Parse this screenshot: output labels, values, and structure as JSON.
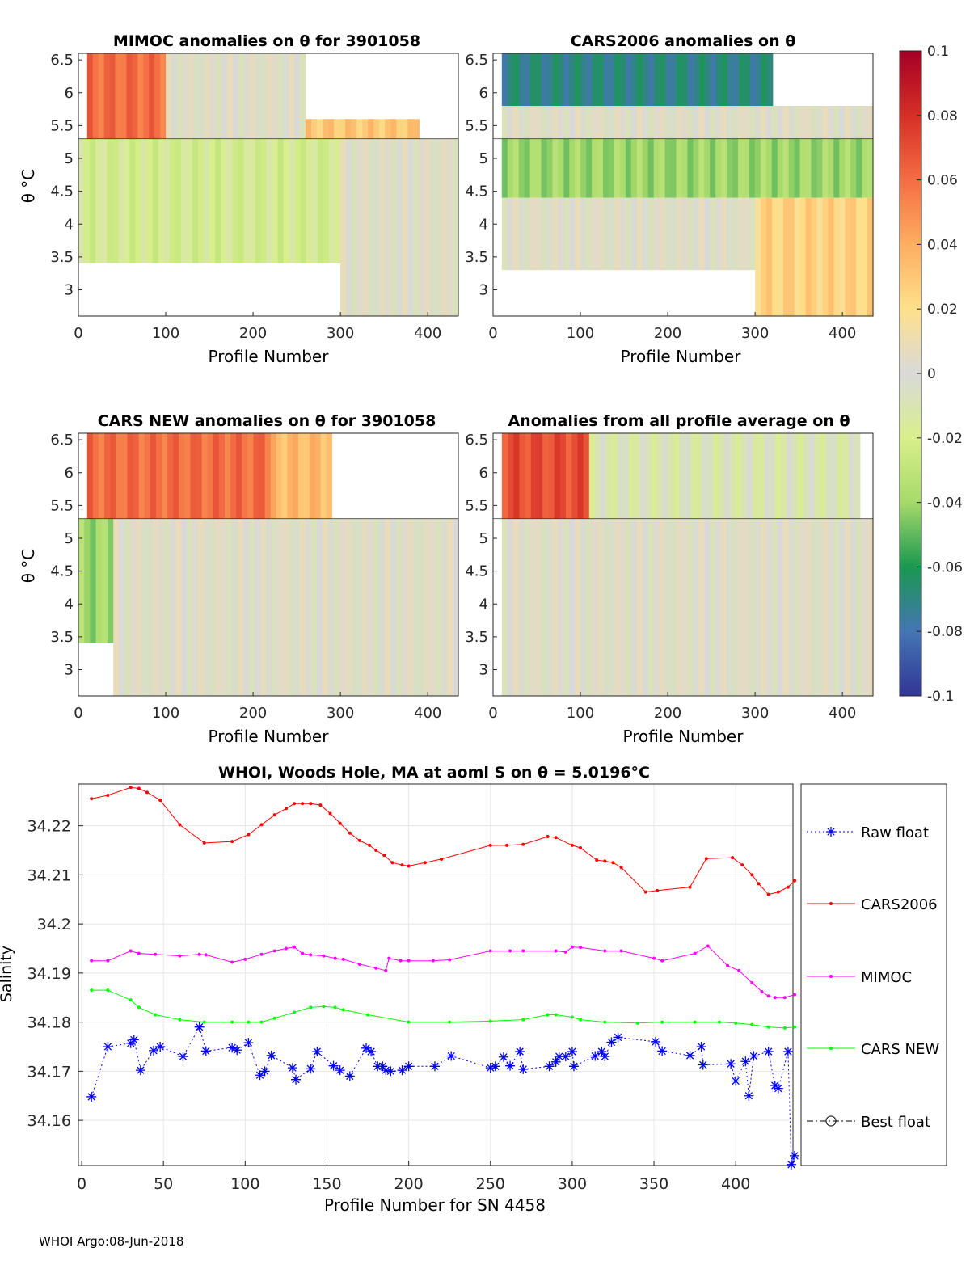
{
  "footer": "WHOI Argo:08-Jun-2018",
  "colorbar": {
    "ticks": [
      "0.1",
      "0.08",
      "0.06",
      "0.04",
      "0.02",
      "0",
      "-0.02",
      "-0.04",
      "-0.06",
      "-0.08",
      "-0.1"
    ],
    "stops": [
      "#a50026",
      "#d62f27",
      "#f46d43",
      "#fdae61",
      "#fee08b",
      "#d9d9d9",
      "#d9ef8b",
      "#a6d96a",
      "#1a9850",
      "#4575b4",
      "#313695"
    ]
  },
  "chart_data": [
    {
      "type": "heatmap",
      "title": "MIMOC anomalies on θ  for 3901058",
      "xlabel": "Profile Number",
      "ylabel": "θ °C",
      "xlim": [
        0,
        435
      ],
      "ylim": [
        2.6,
        6.6
      ],
      "xticks": [
        "0",
        "100",
        "200",
        "300",
        "400"
      ],
      "yticks": [
        "3",
        "3.5",
        "4",
        "4.5",
        "5",
        "5.5",
        "6",
        "6.5"
      ],
      "bands": [
        {
          "y": [
            5.3,
            6.6
          ],
          "x": [
            10,
            100
          ],
          "value": 0.06
        },
        {
          "y": [
            5.3,
            6.6
          ],
          "x": [
            100,
            260
          ],
          "value": 0.0
        },
        {
          "y": [
            5.2,
            5.6
          ],
          "x": [
            260,
            390
          ],
          "value": 0.03
        },
        {
          "y": [
            3.4,
            5.3
          ],
          "x": [
            0,
            300
          ],
          "value": -0.02
        },
        {
          "y": [
            2.6,
            5.3
          ],
          "x": [
            300,
            435
          ],
          "value": 0.0
        }
      ]
    },
    {
      "type": "heatmap",
      "title": "CARS2006 anomalies on θ",
      "xlabel": "Profile Number",
      "ylabel": "",
      "xlim": [
        0,
        435
      ],
      "ylim": [
        2.6,
        6.6
      ],
      "xticks": [
        "0",
        "100",
        "200",
        "300",
        "400"
      ],
      "yticks": [
        "3",
        "3.5",
        "4",
        "4.5",
        "5",
        "5.5",
        "6",
        "6.5"
      ],
      "bands": [
        {
          "y": [
            5.8,
            6.6
          ],
          "x": [
            10,
            320
          ],
          "value": -0.07
        },
        {
          "y": [
            5.3,
            5.8
          ],
          "x": [
            10,
            435
          ],
          "value": 0.0
        },
        {
          "y": [
            4.4,
            5.3
          ],
          "x": [
            10,
            435
          ],
          "value": -0.04
        },
        {
          "y": [
            3.3,
            4.4
          ],
          "x": [
            10,
            300
          ],
          "value": 0.0
        },
        {
          "y": [
            2.6,
            4.4
          ],
          "x": [
            300,
            435
          ],
          "value": 0.025
        }
      ]
    },
    {
      "type": "heatmap",
      "title": "CARS NEW anomalies on θ for 3901058",
      "xlabel": "Profile Number",
      "ylabel": "θ °C",
      "xlim": [
        0,
        435
      ],
      "ylim": [
        2.6,
        6.6
      ],
      "xticks": [
        "0",
        "100",
        "200",
        "300",
        "400"
      ],
      "yticks": [
        "3",
        "3.5",
        "4",
        "4.5",
        "5",
        "5.5",
        "6",
        "6.5"
      ],
      "bands": [
        {
          "y": [
            5.3,
            6.6
          ],
          "x": [
            10,
            220
          ],
          "value": 0.06
        },
        {
          "y": [
            5.3,
            6.6
          ],
          "x": [
            220,
            290
          ],
          "value": 0.035
        },
        {
          "y": [
            3.4,
            5.3
          ],
          "x": [
            0,
            40
          ],
          "value": -0.04
        },
        {
          "y": [
            2.6,
            5.3
          ],
          "x": [
            40,
            435
          ],
          "value": 0.0
        }
      ]
    },
    {
      "type": "heatmap",
      "title": "Anomalies from all profile average on θ",
      "xlabel": "Profile Number",
      "ylabel": "",
      "xlim": [
        0,
        435
      ],
      "ylim": [
        2.6,
        6.6
      ],
      "xticks": [
        "0",
        "100",
        "200",
        "300",
        "400"
      ],
      "yticks": [
        "3",
        "3.5",
        "4",
        "4.5",
        "5",
        "5.5",
        "6",
        "6.5"
      ],
      "bands": [
        {
          "y": [
            5.3,
            6.6
          ],
          "x": [
            10,
            110
          ],
          "value": 0.07
        },
        {
          "y": [
            5.3,
            6.6
          ],
          "x": [
            110,
            420
          ],
          "value": -0.01
        },
        {
          "y": [
            2.6,
            5.3
          ],
          "x": [
            10,
            435
          ],
          "value": 0.0
        }
      ]
    },
    {
      "type": "line",
      "title": "WHOI, Woods Hole, MA at aoml S on θ = 5.0196°C",
      "xlabel": "Profile Number for SN 4458",
      "ylabel": "Salinity",
      "xlim": [
        -2,
        435
      ],
      "ylim": [
        34.1508,
        34.2285
      ],
      "grid": true,
      "legend_position": "right",
      "xticks": [
        0,
        50,
        100,
        150,
        200,
        250,
        300,
        350,
        400
      ],
      "yticks": [
        34.16,
        34.17,
        34.18,
        34.19,
        34.2,
        34.21,
        34.22
      ],
      "series": [
        {
          "name": "Raw float",
          "color": "#0000ff",
          "marker": "*",
          "style": "dotted",
          "x": [
            6,
            16,
            30,
            32,
            36,
            44,
            48,
            62,
            72,
            76,
            92,
            95,
            102,
            109,
            112,
            116,
            129,
            131,
            140,
            144,
            154,
            158,
            164,
            174,
            177,
            181,
            184,
            186,
            189,
            196,
            200,
            216,
            226,
            250,
            253,
            258,
            262,
            268,
            270,
            286,
            290,
            292,
            296,
            300,
            301,
            314,
            318,
            320,
            324,
            328,
            351,
            355,
            372,
            379,
            380,
            397,
            400,
            406,
            408,
            411,
            420,
            424,
            426,
            432,
            434,
            436
          ],
          "y": [
            34.1648,
            34.175,
            34.1757,
            34.1764,
            34.1702,
            34.1742,
            34.175,
            34.173,
            34.179,
            34.1741,
            34.1748,
            34.1743,
            34.1758,
            34.1692,
            34.17,
            34.1732,
            34.1707,
            34.1683,
            34.1705,
            34.174,
            34.1711,
            34.1702,
            34.169,
            34.1747,
            34.174,
            34.171,
            34.171,
            34.1702,
            34.17,
            34.1702,
            34.171,
            34.171,
            34.1731,
            34.1707,
            34.171,
            34.1729,
            34.1711,
            34.174,
            34.1704,
            34.171,
            34.1719,
            34.173,
            34.173,
            34.174,
            34.171,
            34.1731,
            34.174,
            34.173,
            34.1759,
            34.1769,
            34.176,
            34.1741,
            34.1732,
            34.175,
            34.1713,
            34.1715,
            34.168,
            34.172,
            34.165,
            34.1731,
            34.174,
            34.1671,
            34.1665,
            34.174,
            34.151,
            34.1528
          ]
        },
        {
          "name": "CARS2006",
          "color": "#ff0000",
          "marker": ".",
          "style": "solid",
          "x": [
            6,
            16,
            30,
            35,
            40,
            48,
            60,
            75,
            92,
            102,
            110,
            118,
            125,
            130,
            135,
            140,
            146,
            152,
            158,
            164,
            170,
            176,
            180,
            185,
            190,
            196,
            200,
            210,
            220,
            250,
            260,
            270,
            285,
            290,
            300,
            305,
            315,
            320,
            325,
            330,
            345,
            352,
            372,
            382,
            398,
            404,
            410,
            414,
            420,
            426,
            432,
            436
          ],
          "y": [
            34.2255,
            34.2262,
            34.2278,
            34.2276,
            34.2268,
            34.2252,
            34.2202,
            34.2165,
            34.2168,
            34.2182,
            34.2202,
            34.2222,
            34.2235,
            34.2245,
            34.2245,
            34.2245,
            34.2242,
            34.2225,
            34.2205,
            34.2185,
            34.217,
            34.216,
            34.215,
            34.214,
            34.2125,
            34.212,
            34.2118,
            34.2125,
            34.2132,
            34.216,
            34.216,
            34.2162,
            34.2178,
            34.2176,
            34.216,
            34.2155,
            34.213,
            34.2128,
            34.2125,
            34.2115,
            34.2065,
            34.2068,
            34.2075,
            34.2133,
            34.2135,
            34.212,
            34.21,
            34.2082,
            34.206,
            34.2065,
            34.2075,
            34.2088
          ]
        },
        {
          "name": "MIMOC",
          "color": "#ff00ff",
          "marker": ".",
          "style": "solid",
          "x": [
            6,
            16,
            30,
            35,
            45,
            60,
            72,
            76,
            92,
            100,
            110,
            118,
            125,
            130,
            135,
            140,
            148,
            155,
            160,
            170,
            180,
            186,
            188,
            195,
            200,
            215,
            225,
            250,
            262,
            270,
            290,
            296,
            300,
            305,
            320,
            330,
            350,
            355,
            375,
            383,
            395,
            402,
            410,
            416,
            420,
            424,
            430,
            436
          ],
          "y": [
            34.1925,
            34.1925,
            34.1945,
            34.194,
            34.1938,
            34.1935,
            34.1938,
            34.1937,
            34.1922,
            34.1928,
            34.1938,
            34.1945,
            34.195,
            34.1953,
            34.194,
            34.1937,
            34.1935,
            34.193,
            34.1928,
            34.1918,
            34.191,
            34.1905,
            34.193,
            34.1925,
            34.1925,
            34.1925,
            34.1927,
            34.1945,
            34.1945,
            34.1945,
            34.1945,
            34.1943,
            34.1953,
            34.1952,
            34.1945,
            34.1945,
            34.193,
            34.1925,
            34.194,
            34.1955,
            34.1915,
            34.1905,
            34.188,
            34.1862,
            34.1853,
            34.185,
            34.185,
            34.1856
          ]
        },
        {
          "name": "CARS NEW",
          "color": "#00ff00",
          "marker": ".",
          "style": "solid",
          "x": [
            6,
            16,
            30,
            35,
            45,
            60,
            75,
            92,
            102,
            110,
            118,
            130,
            140,
            148,
            155,
            160,
            175,
            200,
            225,
            250,
            270,
            285,
            290,
            300,
            305,
            320,
            340,
            355,
            375,
            390,
            400,
            410,
            420,
            430,
            436
          ],
          "y": [
            34.1865,
            34.1865,
            34.1845,
            34.183,
            34.1815,
            34.1805,
            34.18,
            34.18,
            34.18,
            34.18,
            34.1808,
            34.182,
            34.183,
            34.1832,
            34.183,
            34.1825,
            34.1815,
            34.18,
            34.18,
            34.1802,
            34.1805,
            34.1815,
            34.1815,
            34.181,
            34.1805,
            34.18,
            34.1798,
            34.18,
            34.18,
            34.18,
            34.1798,
            34.1795,
            34.179,
            34.1788,
            34.179
          ]
        },
        {
          "name": "Best float",
          "color": "#000000",
          "marker": "o",
          "style": "dashdot",
          "x": [],
          "y": []
        }
      ]
    }
  ]
}
